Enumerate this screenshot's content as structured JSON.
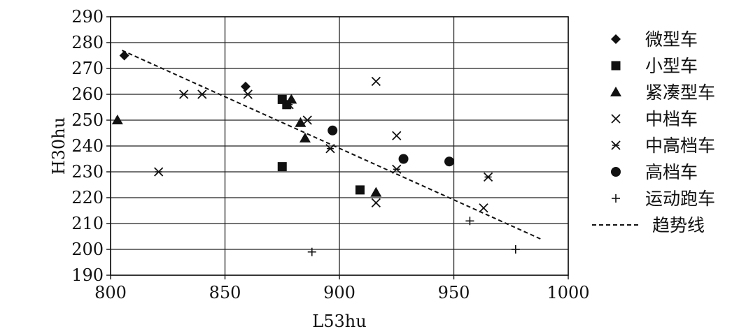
{
  "chart_data": {
    "type": "scatter",
    "xlabel": "L53hu",
    "ylabel": "H30hu",
    "xlim": [
      800,
      1000
    ],
    "ylim": [
      190,
      290
    ],
    "xticks": [
      "800",
      "850",
      "900",
      "950",
      "1000"
    ],
    "yticks": [
      "190",
      "200",
      "210",
      "220",
      "230",
      "240",
      "250",
      "260",
      "270",
      "280",
      "290"
    ],
    "grid": true,
    "legend_position": "right",
    "series": [
      {
        "name": "微型车",
        "marker": "diamond",
        "points": [
          [
            806,
            275
          ],
          [
            859,
            263
          ]
        ]
      },
      {
        "name": "小型车",
        "marker": "square",
        "points": [
          [
            875,
            258
          ],
          [
            877,
            256
          ],
          [
            875,
            232
          ],
          [
            909,
            223
          ]
        ]
      },
      {
        "name": "紧凑型车",
        "marker": "triangle",
        "points": [
          [
            803,
            250
          ],
          [
            879,
            258
          ],
          [
            883,
            249
          ],
          [
            885,
            243
          ],
          [
            916,
            222
          ]
        ]
      },
      {
        "name": "中档车",
        "marker": "x",
        "points": [
          [
            916,
            265
          ],
          [
            925,
            244
          ],
          [
            916,
            218
          ],
          [
            963,
            216
          ]
        ]
      },
      {
        "name": "中高档车",
        "marker": "asterisk",
        "points": [
          [
            821,
            230
          ],
          [
            832,
            260
          ],
          [
            840,
            260
          ],
          [
            860,
            260
          ],
          [
            878,
            256
          ],
          [
            886,
            250
          ],
          [
            896,
            239
          ],
          [
            925,
            231
          ],
          [
            965,
            228
          ]
        ]
      },
      {
        "name": "高档车",
        "marker": "circle",
        "points": [
          [
            897,
            246
          ],
          [
            928,
            235
          ],
          [
            948,
            234
          ]
        ]
      },
      {
        "name": "运动跑车",
        "marker": "plus",
        "points": [
          [
            888,
            199
          ],
          [
            957,
            211
          ],
          [
            977,
            200
          ]
        ]
      }
    ],
    "trendline": {
      "name": "趋势线",
      "style": "dashed",
      "points": [
        [
          805,
          277
        ],
        [
          988,
          204
        ]
      ]
    }
  }
}
